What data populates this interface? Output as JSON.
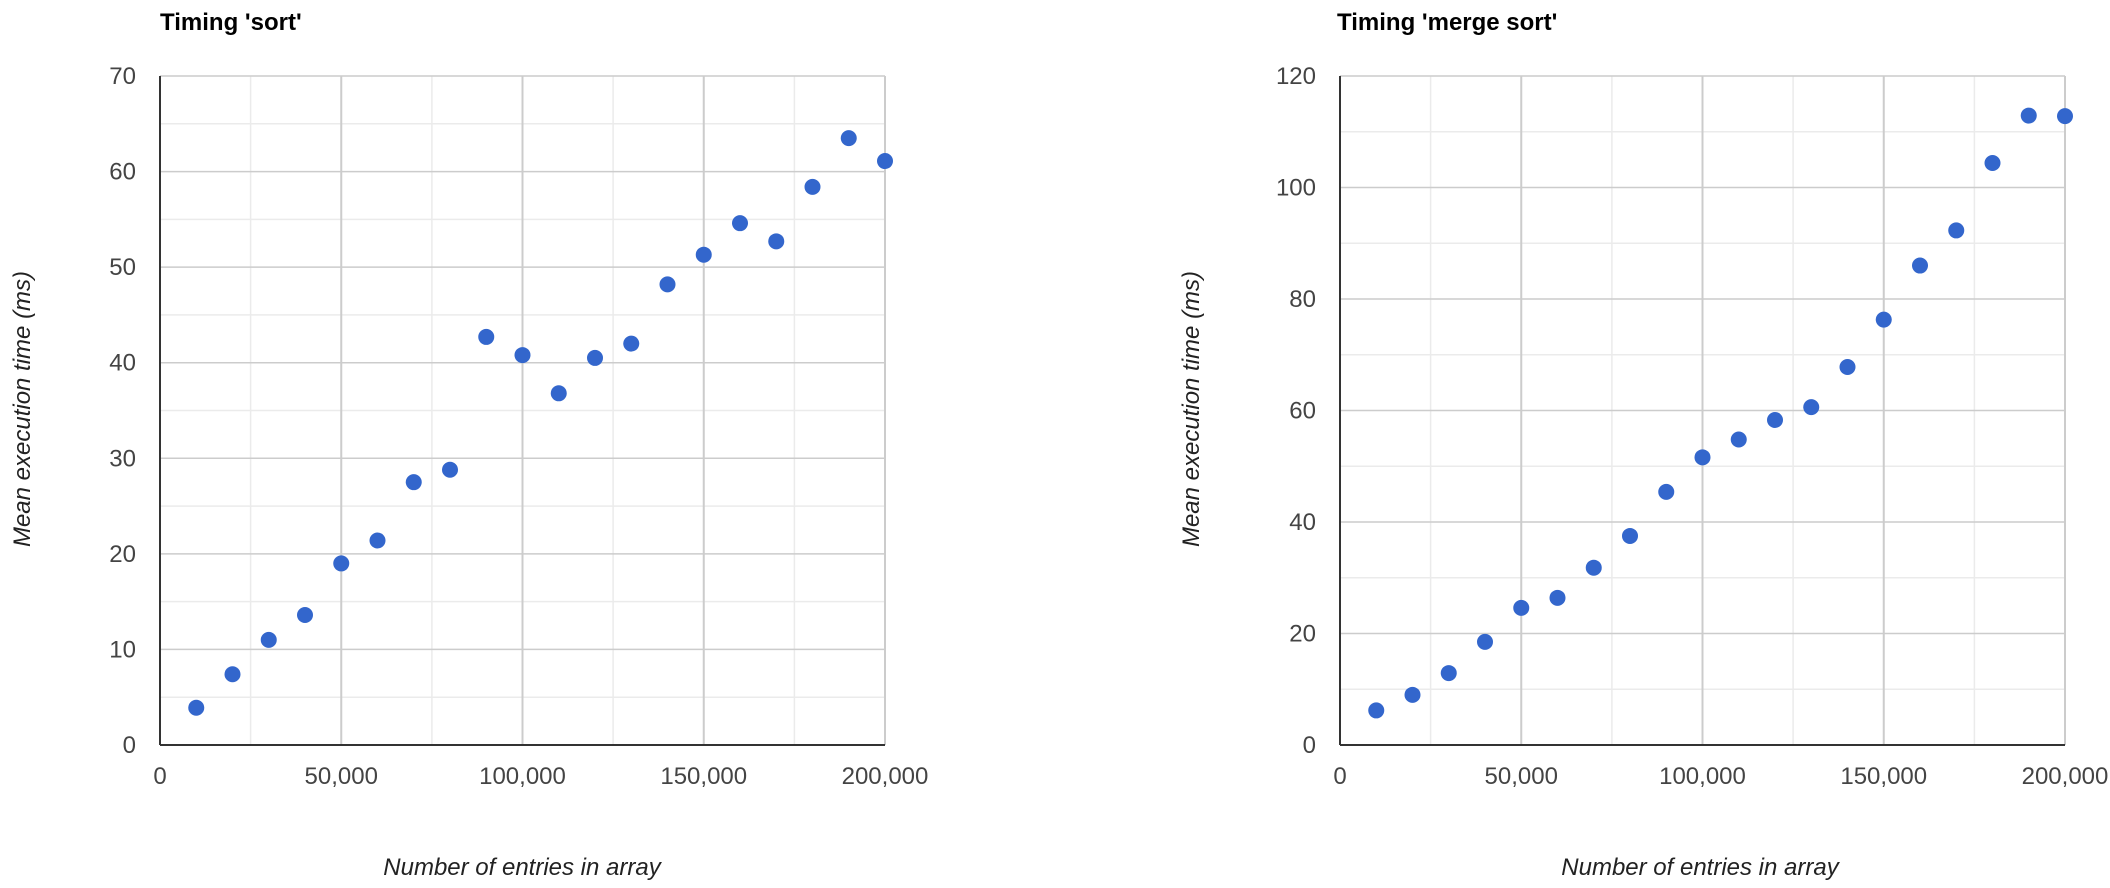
{
  "colors": {
    "point": "#3366cc",
    "axis": "#333333",
    "grid_major": "#cccccc",
    "grid_minor": "#ebebeb"
  },
  "chart_data": [
    {
      "type": "scatter",
      "title": "Timing 'sort'",
      "xlabel": "Number of entries in array",
      "ylabel": "Mean execution time (ms)",
      "xlim": [
        0,
        200000
      ],
      "ylim": [
        0,
        70
      ],
      "x_major_ticks": [
        0,
        50000,
        100000,
        150000,
        200000
      ],
      "x_tick_labels": [
        "0",
        "50,000",
        "100,000",
        "150,000",
        "200,000"
      ],
      "y_major_ticks": [
        0,
        10,
        20,
        30,
        40,
        50,
        60,
        70
      ],
      "y_tick_labels": [
        "0",
        "10",
        "20",
        "30",
        "40",
        "50",
        "60",
        "70"
      ],
      "grid": true,
      "x": [
        10000,
        20000,
        30000,
        40000,
        50000,
        60000,
        70000,
        80000,
        90000,
        100000,
        110000,
        120000,
        130000,
        140000,
        150000,
        160000,
        170000,
        180000,
        190000,
        200000
      ],
      "y": [
        3.9,
        7.4,
        11.0,
        13.6,
        19.0,
        21.4,
        27.5,
        28.8,
        42.7,
        40.8,
        36.8,
        40.5,
        42.0,
        48.2,
        51.3,
        54.6,
        52.7,
        58.4,
        63.5,
        61.1
      ]
    },
    {
      "type": "scatter",
      "title": "Timing 'merge sort'",
      "xlabel": "Number of entries in array",
      "ylabel": "Mean execution time (ms)",
      "xlim": [
        0,
        200000
      ],
      "ylim": [
        0,
        120
      ],
      "x_major_ticks": [
        0,
        50000,
        100000,
        150000,
        200000
      ],
      "x_tick_labels": [
        "0",
        "50,000",
        "100,000",
        "150,000",
        "200,000"
      ],
      "y_major_ticks": [
        0,
        20,
        40,
        60,
        80,
        100,
        120
      ],
      "y_tick_labels": [
        "0",
        "20",
        "40",
        "60",
        "80",
        "100",
        "120"
      ],
      "grid": true,
      "x": [
        10000,
        20000,
        30000,
        40000,
        50000,
        60000,
        70000,
        80000,
        90000,
        100000,
        110000,
        120000,
        130000,
        140000,
        150000,
        160000,
        170000,
        180000,
        190000,
        200000
      ],
      "y": [
        6.2,
        9.0,
        12.9,
        18.5,
        24.6,
        26.4,
        31.8,
        37.5,
        45.4,
        51.6,
        54.8,
        58.3,
        60.6,
        67.8,
        76.3,
        86.0,
        92.3,
        104.4,
        112.9,
        112.8
      ]
    }
  ]
}
